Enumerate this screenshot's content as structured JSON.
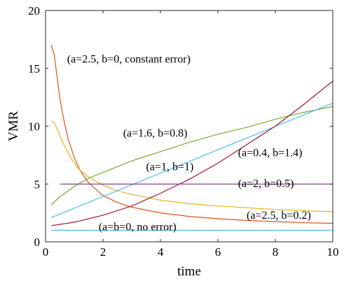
{
  "chart_data": {
    "type": "line",
    "xlabel": "time",
    "ylabel": "VMR",
    "xlim": [
      0,
      10
    ],
    "ylim": [
      0,
      20
    ],
    "x_ticks": [
      0,
      2,
      4,
      6,
      8,
      10
    ],
    "y_ticks": [
      0,
      5,
      10,
      15,
      20
    ],
    "grid": false,
    "series": [
      {
        "name": "(a=b=0, no error)",
        "color": "#4DBEEE",
        "x": [
          0.2,
          10
        ],
        "y": [
          1,
          1
        ]
      },
      {
        "name": "(a=2.5, b=0, constant error)",
        "color": "#D95319",
        "x": [
          0.2,
          0.3,
          0.4,
          0.5,
          0.6,
          0.7,
          0.8,
          1.0,
          1.2,
          1.5,
          2.0,
          2.5,
          3.0,
          4.0,
          5.0,
          6.0,
          7.0,
          8.0,
          9.0,
          10.0
        ],
        "y": [
          17.0,
          16.2,
          14.3,
          12.4,
          11.0,
          9.8,
          8.8,
          7.3,
          6.2,
          5.1,
          4.0,
          3.4,
          3.0,
          2.5,
          2.2,
          2.0,
          1.85,
          1.75,
          1.65,
          1.6
        ]
      },
      {
        "name": "(a=2.5, b=0.2)",
        "color": "#EDB120",
        "x": [
          0.2,
          0.3,
          0.4,
          0.5,
          0.6,
          0.7,
          0.8,
          1.0,
          1.2,
          1.5,
          2.0,
          2.5,
          3.0,
          4.0,
          5.0,
          6.0,
          7.0,
          8.0,
          9.0,
          10.0
        ],
        "y": [
          10.4,
          10.3,
          9.8,
          9.2,
          8.6,
          8.1,
          7.6,
          6.8,
          6.2,
          5.6,
          4.9,
          4.4,
          4.1,
          3.6,
          3.3,
          3.1,
          2.95,
          2.8,
          2.7,
          2.6
        ]
      },
      {
        "name": "(a=1.6, b=0.8)",
        "color": "#77AC30",
        "x": [
          0.2,
          0.5,
          1.0,
          1.5,
          2.0,
          2.5,
          3.0,
          3.5,
          4.0,
          5.0,
          6.0,
          7.0,
          8.0,
          9.0,
          10.0
        ],
        "y": [
          3.2,
          3.9,
          4.8,
          5.5,
          6.0,
          6.5,
          7.0,
          7.4,
          7.8,
          8.6,
          9.3,
          9.9,
          10.6,
          11.2,
          11.7
        ]
      },
      {
        "name": "(a=1, b=1)",
        "color": "#4DBEEE",
        "x": [
          0.2,
          10
        ],
        "y": [
          2.1,
          12.0
        ]
      },
      {
        "name": "(a=0.4, b=1.4)",
        "color": "#A2142F",
        "x": [
          0.2,
          1,
          2,
          3,
          4,
          5,
          6,
          7,
          8,
          9,
          10
        ],
        "y": [
          1.4,
          1.7,
          2.3,
          3.1,
          4.2,
          5.4,
          6.8,
          8.4,
          10.0,
          11.9,
          13.9
        ]
      },
      {
        "name": "(a=2, b=0.5)",
        "color": "#7E2F8E",
        "x": [
          0.5,
          10
        ],
        "y": [
          5.0,
          5.0
        ]
      }
    ],
    "annotations": [
      {
        "text": "(a=2.5, b=0, constant error)",
        "x": 0.75,
        "y": 15.8
      },
      {
        "text": "(a=1.6, b=0.8)",
        "x": 2.7,
        "y": 9.4
      },
      {
        "text": "(a=0.4, b=1.4)",
        "x": 6.7,
        "y": 7.7
      },
      {
        "text": "(a=1, b=1)",
        "x": 3.5,
        "y": 6.5
      },
      {
        "text": "(a=2, b=0.5)",
        "x": 6.7,
        "y": 5.05
      },
      {
        "text": "(a=2.5, b=0.2)",
        "x": 7.0,
        "y": 2.3
      },
      {
        "text": "(a=b=0, no error)",
        "x": 1.85,
        "y": 1.3
      }
    ]
  }
}
